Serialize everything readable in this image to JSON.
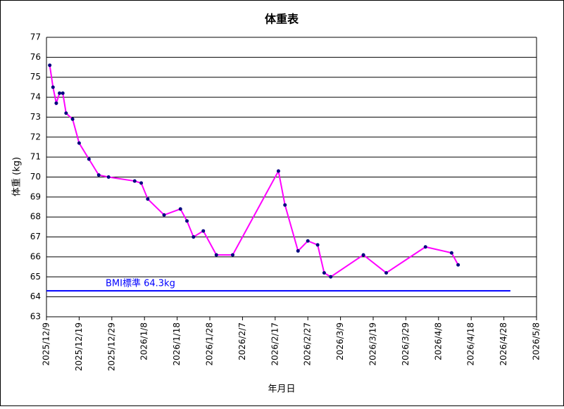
{
  "chart_data": {
    "type": "line",
    "title": "体重表",
    "x_label": "年月日",
    "y_label": "体重 (kg)",
    "x": [
      "2025/12/10",
      "2025/12/11",
      "2025/12/12",
      "2025/12/13",
      "2025/12/14",
      "2025/12/15",
      "2025/12/17",
      "2025/12/19",
      "2025/12/22",
      "2025/12/25",
      "2025/12/28",
      "2026/1/5",
      "2026/1/7",
      "2026/1/9",
      "2026/1/14",
      "2026/1/19",
      "2026/1/21",
      "2026/1/23",
      "2026/1/26",
      "2026/1/30",
      "2026/2/4",
      "2026/2/18",
      "2026/2/20",
      "2026/2/24",
      "2026/2/27",
      "2026/3/2",
      "2026/3/4",
      "2026/3/6",
      "2026/3/16",
      "2026/3/23",
      "2026/4/4",
      "2026/4/12",
      "2026/4/14"
    ],
    "series": [
      {
        "color": "#ff00ff",
        "marker_color": "#000080",
        "values": [
          75.6,
          74.5,
          73.7,
          74.2,
          74.2,
          73.2,
          72.9,
          71.7,
          70.9,
          70.1,
          70.0,
          69.8,
          69.7,
          68.9,
          68.1,
          68.4,
          67.8,
          67.0,
          67.3,
          66.1,
          66.1,
          70.3,
          68.6,
          66.3,
          66.8,
          66.6,
          65.2,
          65.0,
          66.1,
          65.2,
          66.5,
          66.2,
          65.6
        ]
      }
    ],
    "reference_line": {
      "value": 64.3,
      "label": "BMI標準 64.3kg",
      "x": [
        "2025/12/9",
        "2026/4/30"
      ],
      "color": "#0000ff"
    },
    "xlim": [
      "2025/12/9",
      "2026/5/8"
    ],
    "xticks": [
      "2025/12/9",
      "2025/12/19",
      "2025/12/29",
      "2026/1/8",
      "2026/1/18",
      "2026/1/28",
      "2026/2/7",
      "2026/2/17",
      "2026/2/27",
      "2026/3/9",
      "2026/3/19",
      "2026/3/29",
      "2026/4/8",
      "2026/4/18",
      "2026/4/28",
      "2026/5/8"
    ],
    "ylim": [
      63,
      77
    ],
    "yticks": [
      63,
      64,
      65,
      66,
      67,
      68,
      69,
      70,
      71,
      72,
      73,
      74,
      75,
      76,
      77
    ],
    "grid": true
  }
}
